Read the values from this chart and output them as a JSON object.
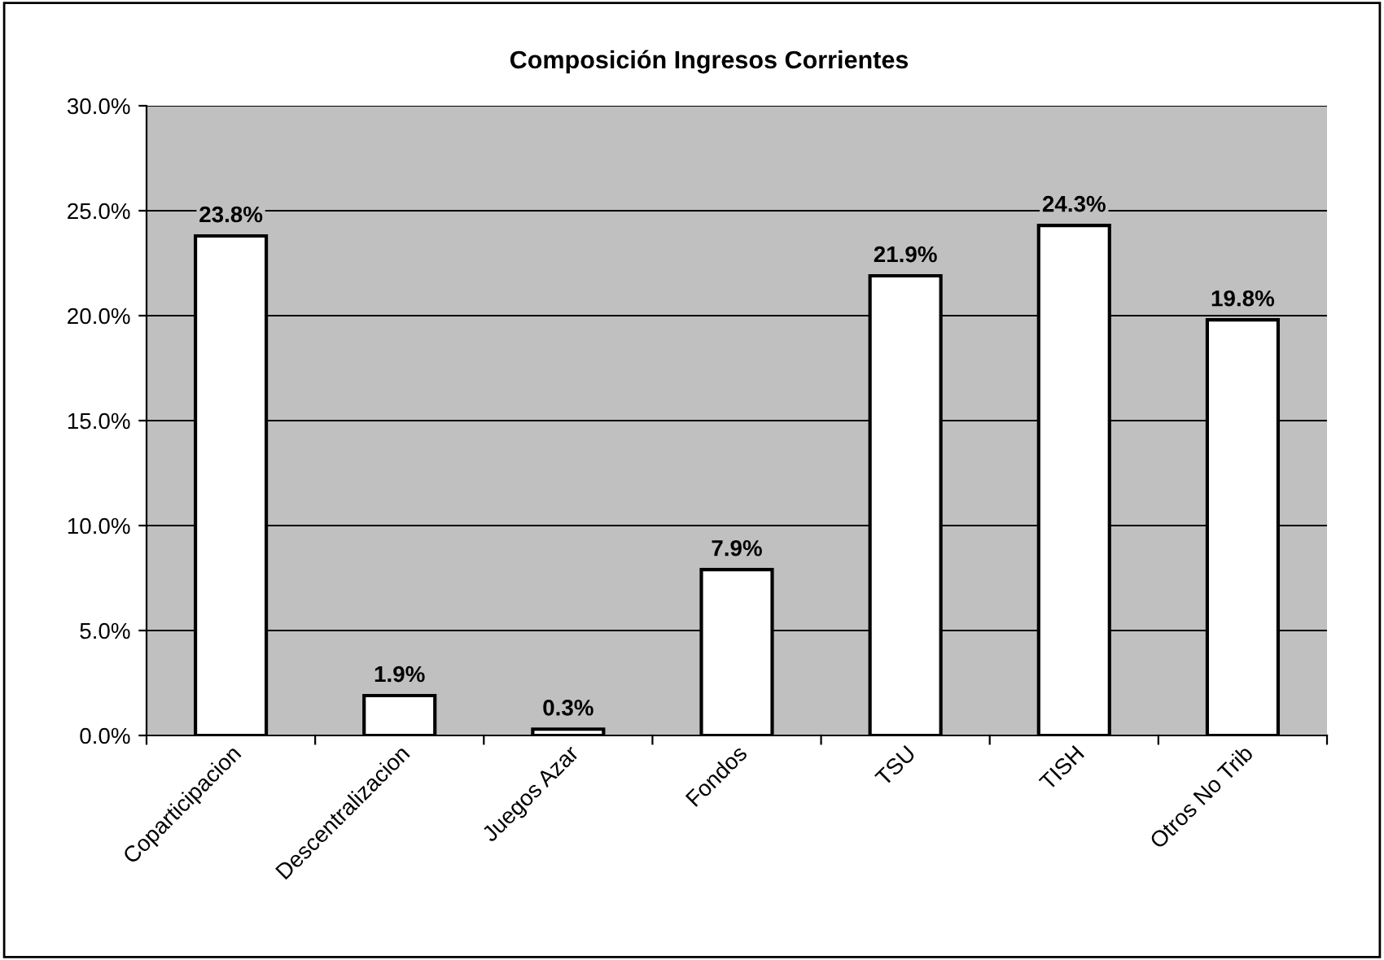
{
  "chart_data": {
    "type": "bar",
    "title": "Composición Ingresos Corrientes",
    "categories": [
      "Coparticipacion",
      "Descentralizacion",
      "Juegos Azar",
      "Fondos",
      "TSU",
      "TISH",
      "Otros No Trib"
    ],
    "values": [
      23.8,
      1.9,
      0.3,
      7.9,
      21.9,
      24.3,
      19.8
    ],
    "value_labels": [
      "23.8%",
      "1.9%",
      "0.3%",
      "7.9%",
      "21.9%",
      "24.3%",
      "19.8%"
    ],
    "color": "#ffffff",
    "ylim": [
      0,
      30
    ],
    "yticks": [
      {
        "value": 0,
        "label": "0.0%"
      },
      {
        "value": 5,
        "label": "5.0%"
      },
      {
        "value": 10,
        "label": "10.0%"
      },
      {
        "value": 15,
        "label": "15.0%"
      },
      {
        "value": 20,
        "label": "20.0%"
      },
      {
        "value": 25,
        "label": "25.0%"
      },
      {
        "value": 30,
        "label": "30.0%"
      }
    ],
    "grid": "y",
    "legend": false
  }
}
